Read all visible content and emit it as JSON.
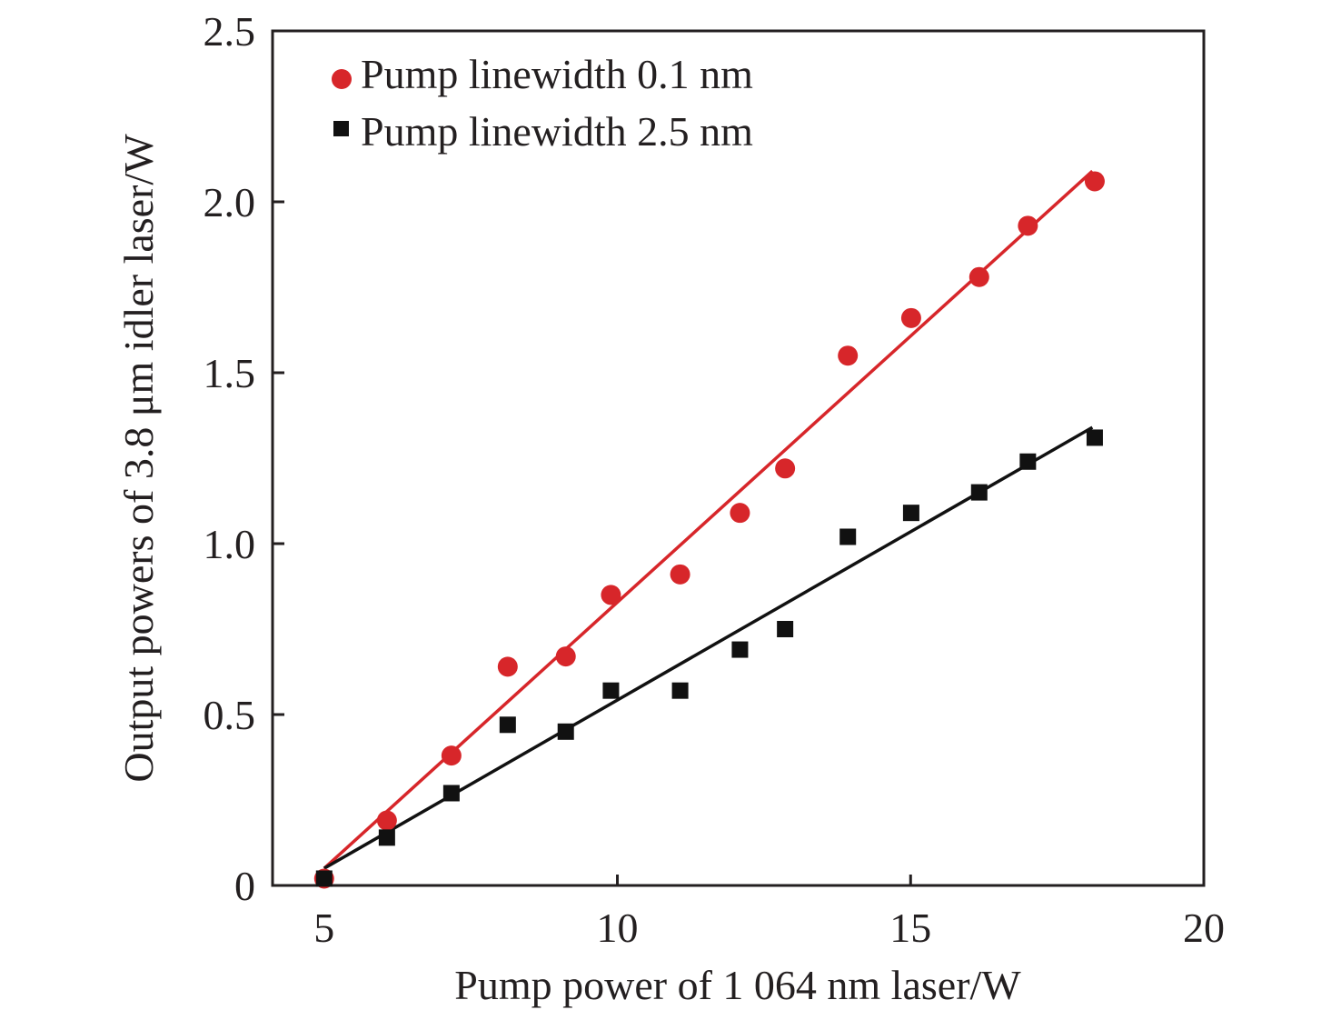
{
  "chart_data": {
    "type": "scatter",
    "title": "",
    "xlabel": "Pump power of 1 064 nm laser/W",
    "ylabel": "Output powers of 3.8 μm idler laser/W",
    "xlim": [
      4.12,
      20
    ],
    "ylim": [
      0,
      2.5
    ],
    "xticks": [
      5,
      10,
      15,
      20
    ],
    "xtick_labels": [
      "5",
      "10",
      "15",
      "20"
    ],
    "yticks": [
      0,
      0.5,
      1.0,
      1.5,
      2.0,
      2.5
    ],
    "ytick_labels": [
      "0",
      "0.5",
      "1.0",
      "1.5",
      "2.0",
      "2.5"
    ],
    "grid": false,
    "legend_position": "top-left",
    "series": [
      {
        "name": "Pump linewidth 0.1 nm",
        "marker": "circle",
        "color": "#d7262a",
        "x": [
          5.0,
          6.07,
          7.17,
          8.13,
          9.12,
          9.89,
          11.07,
          12.09,
          12.86,
          13.93,
          15.01,
          16.17,
          17.0,
          18.14
        ],
        "y": [
          0.02,
          0.19,
          0.38,
          0.64,
          0.67,
          0.85,
          0.91,
          1.09,
          1.22,
          1.55,
          1.66,
          1.78,
          1.93,
          2.06
        ],
        "fit": {
          "x": [
            5.0,
            18.1
          ],
          "y": [
            0.05,
            2.09
          ]
        }
      },
      {
        "name": "Pump linewidth 2.5 nm",
        "marker": "square",
        "color": "#111111",
        "x": [
          5.0,
          6.07,
          7.17,
          8.13,
          9.12,
          9.89,
          11.07,
          12.09,
          12.86,
          13.93,
          15.01,
          16.17,
          17.0,
          18.14
        ],
        "y": [
          0.02,
          0.14,
          0.27,
          0.47,
          0.45,
          0.57,
          0.57,
          0.69,
          0.75,
          1.02,
          1.09,
          1.15,
          1.24,
          1.31
        ],
        "fit": {
          "x": [
            5.0,
            18.1
          ],
          "y": [
            0.05,
            1.34
          ]
        }
      }
    ]
  }
}
